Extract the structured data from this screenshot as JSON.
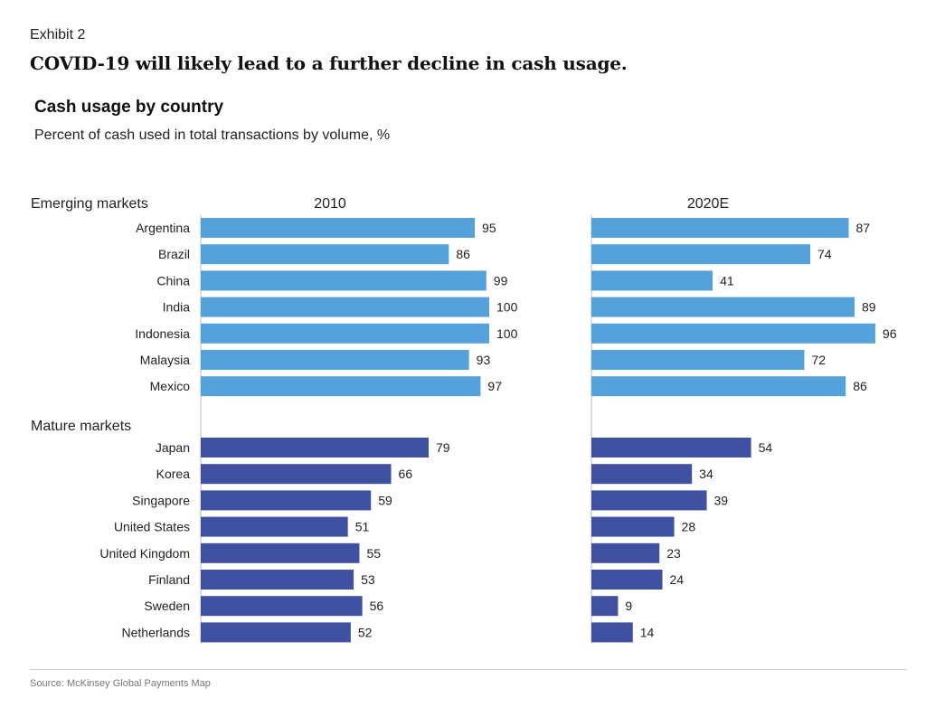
{
  "header": {
    "exhibit": "Exhibit 2",
    "headline": "COVID-19 will likely lead to a further decline in cash usage."
  },
  "source": "Source: McKinsey Global Payments Map",
  "colors": {
    "emerging": "#54a1db",
    "mature": "#3f51a0",
    "axis": "#bdbdbd"
  },
  "chart_data": {
    "type": "bar",
    "orientation": "horizontal",
    "title": "Cash usage by country",
    "subtitle": "Percent of cash used in total transactions by volume, %",
    "groups": [
      {
        "name": "Emerging markets",
        "categories": [
          "Argentina",
          "Brazil",
          "China",
          "India",
          "Indonesia",
          "Malaysia",
          "Mexico"
        ]
      },
      {
        "name": "Mature markets",
        "categories": [
          "Japan",
          "Korea",
          "Singapore",
          "United States",
          "United Kingdom",
          "Finland",
          "Sweden",
          "Netherlands"
        ]
      }
    ],
    "series": [
      {
        "name": "2010",
        "values": [
          95,
          86,
          99,
          100,
          100,
          93,
          97,
          79,
          66,
          59,
          51,
          55,
          53,
          56,
          52
        ]
      },
      {
        "name": "2020E",
        "values": [
          87,
          74,
          41,
          89,
          96,
          72,
          86,
          54,
          34,
          39,
          28,
          23,
          24,
          9,
          14
        ]
      }
    ],
    "xlim": [
      0,
      100
    ],
    "data_labels": true,
    "grid": false,
    "legend": "none"
  }
}
